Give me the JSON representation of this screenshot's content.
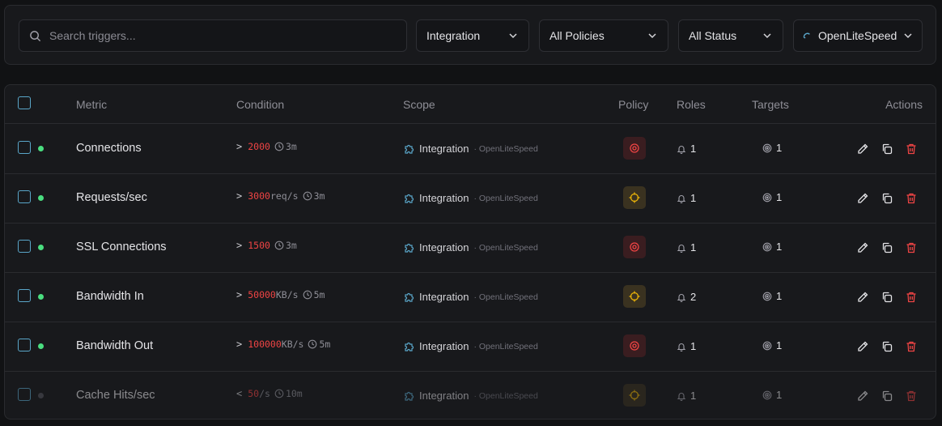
{
  "filters": {
    "search_placeholder": "Search triggers...",
    "scope_select": "Integration",
    "policy_select": "All Policies",
    "status_select": "All Status",
    "integration_select": "OpenLiteSpeed"
  },
  "table": {
    "headers": {
      "metric": "Metric",
      "condition": "Condition",
      "scope": "Scope",
      "policy": "Policy",
      "roles": "Roles",
      "targets": "Targets",
      "actions": "Actions"
    },
    "rows": [
      {
        "metric": "Connections",
        "op": ">",
        "value": "2000",
        "unit": "",
        "window": "3m",
        "scope": "Integration",
        "scope_sub": "· OpenLiteSpeed",
        "policy": "critical",
        "roles": "1",
        "targets": "1",
        "enabled": true
      },
      {
        "metric": "Requests/sec",
        "op": ">",
        "value": "3000",
        "unit": "req/s",
        "window": "3m",
        "scope": "Integration",
        "scope_sub": "· OpenLiteSpeed",
        "policy": "warning",
        "roles": "1",
        "targets": "1",
        "enabled": true
      },
      {
        "metric": "SSL Connections",
        "op": ">",
        "value": "1500",
        "unit": "",
        "window": "3m",
        "scope": "Integration",
        "scope_sub": "· OpenLiteSpeed",
        "policy": "critical",
        "roles": "1",
        "targets": "1",
        "enabled": true
      },
      {
        "metric": "Bandwidth In",
        "op": ">",
        "value": "50000",
        "unit": "KB/s",
        "window": "5m",
        "scope": "Integration",
        "scope_sub": "· OpenLiteSpeed",
        "policy": "warning",
        "roles": "2",
        "targets": "1",
        "enabled": true
      },
      {
        "metric": "Bandwidth Out",
        "op": ">",
        "value": "100000",
        "unit": "KB/s",
        "window": "5m",
        "scope": "Integration",
        "scope_sub": "· OpenLiteSpeed",
        "policy": "critical",
        "roles": "1",
        "targets": "1",
        "enabled": true
      },
      {
        "metric": "Cache Hits/sec",
        "op": "<",
        "value": "50",
        "unit": "/s",
        "window": "10m",
        "scope": "Integration",
        "scope_sub": "· OpenLiteSpeed",
        "policy": "warning",
        "roles": "1",
        "targets": "1",
        "enabled": false
      }
    ]
  },
  "colors": {
    "critical": "#ef4444",
    "warning": "#eab308",
    "active_dot": "#4ade80",
    "accent": "#5aa6c9"
  }
}
